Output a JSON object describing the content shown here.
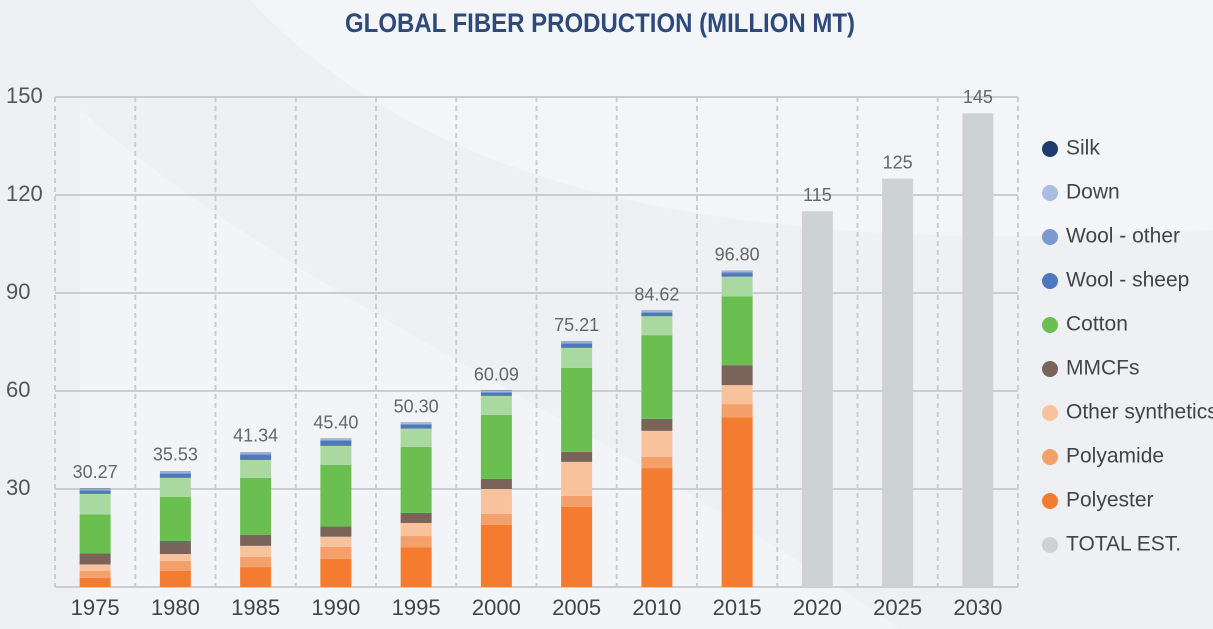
{
  "chart_data": {
    "type": "stacked_bar",
    "title": "GLOBAL FIBER PRODUCTION (MILLION MT)",
    "categories": [
      "1975",
      "1980",
      "1985",
      "1990",
      "1995",
      "2000",
      "2005",
      "2010",
      "2015",
      "2020",
      "2025",
      "2030"
    ],
    "ylim": [
      0,
      150
    ],
    "yticks": [
      30,
      60,
      90,
      120,
      150
    ],
    "grid": true,
    "legend": "right",
    "series": [
      {
        "name": "Polyester",
        "color": "#f47c30",
        "values": [
          2.8,
          4.9,
          6.1,
          8.6,
          12.2,
          19.0,
          24.5,
          36.4,
          52.0,
          null,
          null,
          null
        ]
      },
      {
        "name": "Polyamide",
        "color": "#f4a06a",
        "values": [
          2.1,
          3.1,
          3.1,
          3.7,
          3.4,
          3.4,
          3.4,
          3.4,
          4.0,
          null,
          null,
          null
        ]
      },
      {
        "name": "Other synthetics",
        "color": "#f8c29c",
        "values": [
          2.0,
          2.1,
          3.4,
          3.1,
          4.0,
          7.6,
          10.4,
          8.0,
          5.8,
          null,
          null,
          null
        ]
      },
      {
        "name": "MMCFs",
        "color": "#7a6358",
        "values": [
          3.4,
          4.0,
          3.4,
          3.1,
          3.1,
          3.1,
          3.1,
          3.7,
          6.1,
          null,
          null,
          null
        ]
      },
      {
        "name": "Cotton",
        "color": "#6abf50",
        "values": [
          11.9,
          13.5,
          17.4,
          18.9,
          20.2,
          19.6,
          25.7,
          25.6,
          21.1,
          null,
          null,
          null
        ]
      },
      {
        "color": "#a9d9a1",
        "values": [
          6.3,
          5.8,
          5.5,
          5.8,
          5.6,
          5.8,
          6.1,
          5.8,
          6.0,
          null,
          null,
          null
        ]
      },
      {
        "name": "Wool - sheep",
        "color": "#4f77be",
        "values": [
          1.0,
          1.2,
          1.5,
          1.5,
          1.2,
          1.0,
          1.3,
          1.0,
          1.1,
          null,
          null,
          null
        ]
      },
      {
        "name": "Wool - other",
        "color": "#7b9bd0",
        "values": [
          0.4,
          0.5,
          0.5,
          0.4,
          0.3,
          0.3,
          0.4,
          0.4,
          0.4,
          null,
          null,
          null
        ]
      },
      {
        "name": "Down",
        "color": "#a9bde0",
        "values": [
          0.2,
          0.2,
          0.2,
          0.2,
          0.2,
          0.2,
          0.2,
          0.2,
          0.2,
          null,
          null,
          null
        ]
      },
      {
        "name": "Silk",
        "color": "#1f3c6e",
        "values": [
          0.1,
          0.1,
          0.1,
          0.1,
          0.1,
          0.1,
          0.1,
          0.1,
          0.1,
          null,
          null,
          null
        ]
      },
      {
        "name": "TOTAL EST.",
        "color": "#cdd3d4",
        "values": [
          null,
          null,
          null,
          null,
          null,
          null,
          null,
          null,
          null,
          115,
          125,
          145
        ]
      }
    ],
    "totals": [
      30.27,
      35.53,
      41.34,
      45.4,
      50.3,
      60.09,
      75.21,
      84.62,
      96.8
    ],
    "total_labels": [
      "30.27",
      "35.53",
      "41.34",
      "45.40",
      "50.30",
      "60.09",
      "75.21",
      "84.62",
      "96.80"
    ]
  }
}
